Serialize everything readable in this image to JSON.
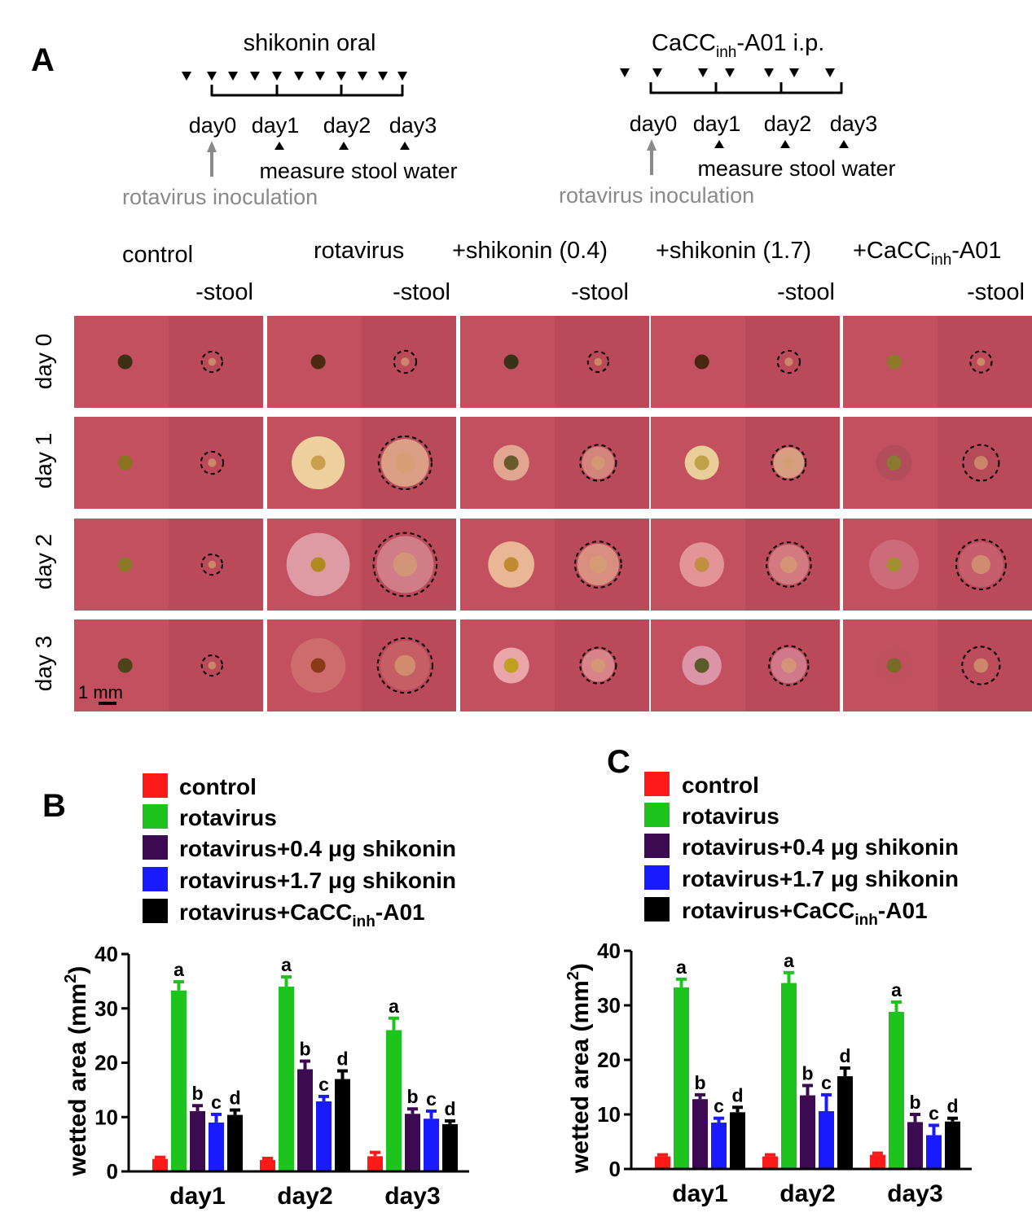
{
  "panel_a": {
    "label": "A",
    "timelines": [
      {
        "title": "shikonin oral",
        "title_sub": "",
        "title_suffix": "",
        "days": [
          "day0",
          "day1",
          "day2",
          "day3"
        ],
        "measure_note": "measure stool water",
        "inoculation_note": "rotavirus inoculation"
      },
      {
        "title": "CaCC",
        "title_sub": "inh",
        "title_suffix": "-A01 i.p.",
        "days": [
          "day0",
          "day1",
          "day2",
          "day3"
        ],
        "measure_note": "measure stool water",
        "inoculation_note": "rotavirus inoculation"
      }
    ],
    "column_headers": [
      {
        "main": "control",
        "sub": "",
        "suffix": ""
      },
      {
        "main": "rotavirus",
        "sub": "",
        "suffix": ""
      },
      {
        "main": "+shikonin (0.4)",
        "sub": "",
        "suffix": ""
      },
      {
        "main": "+shikonin (1.7)",
        "sub": "",
        "suffix": ""
      },
      {
        "main": "+CaCC",
        "sub": "inh",
        "suffix": "-A01"
      }
    ],
    "stool_label": "-stool",
    "row_labels": [
      "day 0",
      "day 1",
      "day 2",
      "day 3"
    ],
    "scale_bar": "1 mm",
    "wetted_fraction": [
      [
        0.24,
        0.26,
        0.24,
        0.26,
        0.25
      ],
      [
        0.26,
        0.62,
        0.42,
        0.4,
        0.42
      ],
      [
        0.24,
        0.74,
        0.54,
        0.52,
        0.58
      ],
      [
        0.24,
        0.64,
        0.42,
        0.46,
        0.44
      ]
    ],
    "stool_colors": [
      [
        "#3c3014",
        "#4a2a12",
        "#3a3216",
        "#4a2612",
        "#8c7a2a"
      ],
      [
        "#8a7420",
        "#c9a050",
        "#6a5a2a",
        "#c0a048",
        "#8a7a30"
      ],
      [
        "#8a7a28",
        "#b08a20",
        "#c08a30",
        "#c09040",
        "#a09030"
      ],
      [
        "#4a4418",
        "#8a3a18",
        "#c0a020",
        "#5a5a2a",
        "#7a6a28"
      ]
    ],
    "halo_colors": [
      [
        "#c0505e",
        "#c0505e",
        "#c0505e",
        "#c0505e",
        "#c0505e"
      ],
      [
        "#c0505e",
        "#f4e6a8",
        "#e8b49a",
        "#f0e4a4",
        "#b04c5a"
      ],
      [
        "#c0505e",
        "#e4a8b0",
        "#f0c8a0",
        "#e8a0a0",
        "#d07080"
      ],
      [
        "#c0505e",
        "#d07070",
        "#f0b4b4",
        "#e0a0b4",
        "#c0505e"
      ]
    ]
  },
  "legend": {
    "items": [
      {
        "label": "control",
        "sub": "",
        "suffix": "",
        "color": "#ff1a1a"
      },
      {
        "label": "rotavirus",
        "sub": "",
        "suffix": "",
        "color": "#1ec41e"
      },
      {
        "label": "rotavirus+0.4 μg shikonin",
        "sub": "",
        "suffix": "",
        "color": "#3c0a50"
      },
      {
        "label": "rotavirus+1.7 μg shikonin",
        "sub": "",
        "suffix": "",
        "color": "#1a1aff"
      },
      {
        "label": "rotavirus+CaCC",
        "sub": "inh",
        "suffix": "-A01",
        "color": "#000000"
      }
    ]
  },
  "chart_data": [
    {
      "type": "bar",
      "panel": "B",
      "title": "",
      "xlabel": "",
      "ylabel": "wetted area (mm",
      "ylabel_sup": "2",
      "ylabel_close": ")",
      "categories": [
        "day1",
        "day2",
        "day3"
      ],
      "ylim": [
        0,
        40
      ],
      "yticks": [
        0,
        10,
        20,
        30,
        40
      ],
      "series": [
        {
          "name": "control",
          "color": "#ff1a1a",
          "values": [
            2.3,
            2.1,
            2.8
          ],
          "errors": [
            0.3,
            0.3,
            0.7
          ],
          "labels": [
            "",
            "",
            ""
          ]
        },
        {
          "name": "rotavirus",
          "color": "#1ec41e",
          "values": [
            33.3,
            34.0,
            26.0
          ],
          "errors": [
            1.6,
            1.8,
            2.2
          ],
          "labels": [
            "a",
            "a",
            "a"
          ]
        },
        {
          "name": "rotavirus+0.4 μg shikonin",
          "color": "#3c0a50",
          "values": [
            11.1,
            18.8,
            10.6
          ],
          "errors": [
            1.0,
            1.5,
            0.9
          ],
          "labels": [
            "b",
            "b",
            "b"
          ]
        },
        {
          "name": "rotavirus+1.7 μg shikonin",
          "color": "#1a1aff",
          "values": [
            9.0,
            12.9,
            9.7
          ],
          "errors": [
            1.5,
            0.9,
            1.4
          ],
          "labels": [
            "c",
            "c",
            "c"
          ]
        },
        {
          "name": "rotavirus+CaCC-inh-A01",
          "color": "#000000",
          "values": [
            10.4,
            17.0,
            8.7
          ],
          "errors": [
            0.9,
            1.5,
            0.6
          ],
          "labels": [
            "d",
            "d",
            "d"
          ]
        }
      ]
    },
    {
      "type": "bar",
      "panel": "C",
      "title": "",
      "xlabel": "",
      "ylabel": "wetted area (mm",
      "ylabel_sup": "2",
      "ylabel_close": ")",
      "categories": [
        "day1",
        "day2",
        "day3"
      ],
      "ylim": [
        0,
        40
      ],
      "yticks": [
        0,
        10,
        20,
        30,
        40
      ],
      "series": [
        {
          "name": "control",
          "color": "#ff1a1a",
          "values": [
            2.3,
            2.3,
            2.6
          ],
          "errors": [
            0.3,
            0.3,
            0.3
          ],
          "labels": [
            "",
            "",
            ""
          ]
        },
        {
          "name": "rotavirus",
          "color": "#1ec41e",
          "values": [
            33.3,
            34.1,
            28.8
          ],
          "errors": [
            1.5,
            1.9,
            1.8
          ],
          "labels": [
            "a",
            "a",
            "a"
          ]
        },
        {
          "name": "rotavirus+0.4 μg shikonin",
          "color": "#3c0a50",
          "values": [
            12.8,
            13.5,
            8.6
          ],
          "errors": [
            0.8,
            1.8,
            1.4
          ],
          "labels": [
            "b",
            "b",
            "b"
          ]
        },
        {
          "name": "rotavirus+1.7 μg shikonin",
          "color": "#1a1aff",
          "values": [
            8.5,
            10.6,
            6.2
          ],
          "errors": [
            0.8,
            3.0,
            1.8
          ],
          "labels": [
            "c",
            "c",
            "c"
          ]
        },
        {
          "name": "rotavirus+CaCC-inh-A01",
          "color": "#000000",
          "values": [
            10.4,
            17.0,
            8.7
          ],
          "errors": [
            0.9,
            1.5,
            0.6
          ],
          "labels": [
            "d",
            "d",
            "d"
          ]
        }
      ]
    }
  ]
}
